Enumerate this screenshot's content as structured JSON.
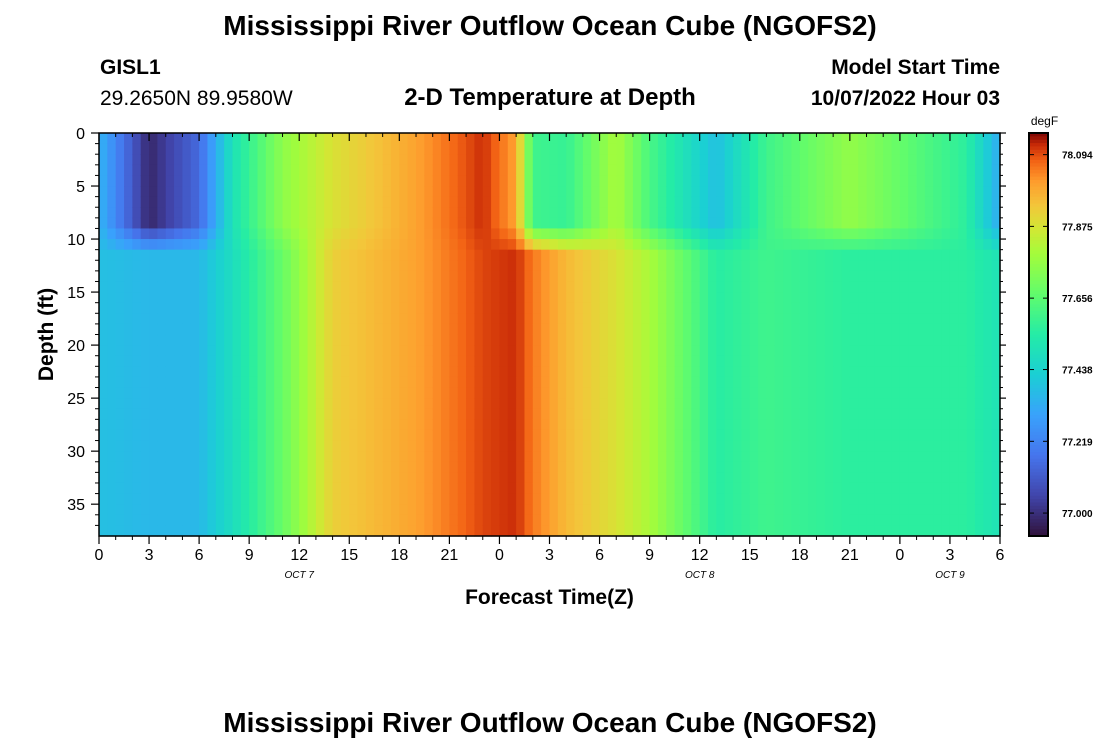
{
  "title": "Mississippi River Outflow Ocean Cube (NGOFS2)",
  "station": {
    "id": "GISL1",
    "coords": "29.2650N  89.9580W"
  },
  "subtitle": "2-D Temperature at Depth",
  "model_start": {
    "label": "Model Start Time",
    "value": "10/07/2022 Hour 03"
  },
  "footer_title": "Mississippi River Outflow Ocean Cube (NGOFS2)",
  "chart_data": {
    "type": "heatmap",
    "xlabel": "Forecast Time(Z)",
    "ylabel": "Depth (ft)",
    "x_tick_labels": [
      "0",
      "3",
      "6",
      "9",
      "12",
      "15",
      "18",
      "21",
      "0",
      "3",
      "6",
      "9",
      "12",
      "15",
      "18",
      "21",
      "0",
      "3",
      "6"
    ],
    "date_labels": [
      {
        "text": "OCT 7",
        "at_tick": 4
      },
      {
        "text": "OCT 8",
        "at_tick": 12
      },
      {
        "text": "OCT 9",
        "at_tick": 17
      }
    ],
    "x_hours_range": [
      0,
      54
    ],
    "y_tick_labels": [
      "0",
      "5",
      "10",
      "15",
      "20",
      "25",
      "30",
      "35"
    ],
    "ylim": [
      0,
      38
    ],
    "y_inverted": true,
    "colorbar": {
      "unit": "degF",
      "min": 76.93,
      "max": 78.16,
      "tick_labels": [
        "78.094",
        "77.875",
        "77.656",
        "77.438",
        "77.219",
        "77.000"
      ]
    },
    "temperature_profiles_by_hour": [
      {
        "hour": 0,
        "surface": 77.35,
        "bottom": 77.38
      },
      {
        "hour": 3,
        "surface": 76.98,
        "bottom": 77.36
      },
      {
        "hour": 6,
        "surface": 77.15,
        "bottom": 77.36
      },
      {
        "hour": 8,
        "surface": 77.5,
        "bottom": 77.48
      },
      {
        "hour": 11,
        "surface": 77.75,
        "bottom": 77.68
      },
      {
        "hour": 14,
        "surface": 77.88,
        "bottom": 77.92
      },
      {
        "hour": 19,
        "surface": 78.0,
        "bottom": 78.0
      },
      {
        "hour": 23,
        "surface": 78.12,
        "bottom": 78.1
      },
      {
        "hour": 25,
        "surface": 78.0,
        "bottom": 78.12
      },
      {
        "hour": 26,
        "surface": 77.6,
        "bottom": 78.05
      },
      {
        "hour": 28,
        "surface": 77.58,
        "bottom": 77.96
      },
      {
        "hour": 31,
        "surface": 77.8,
        "bottom": 77.88
      },
      {
        "hour": 33,
        "surface": 77.62,
        "bottom": 77.8
      },
      {
        "hour": 37,
        "surface": 77.38,
        "bottom": 77.55
      },
      {
        "hour": 40,
        "surface": 77.6,
        "bottom": 77.6
      },
      {
        "hour": 45,
        "surface": 77.76,
        "bottom": 77.56
      },
      {
        "hour": 52,
        "surface": 77.56,
        "bottom": 77.56
      },
      {
        "hour": 54,
        "surface": 77.32,
        "bottom": 77.5
      }
    ]
  }
}
